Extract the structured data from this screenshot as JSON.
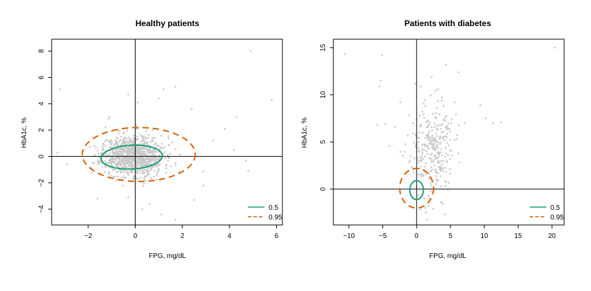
{
  "chart_data": [
    {
      "type": "scatter",
      "title": "Healthy patients",
      "xlabel": "FPG, mg/dL",
      "ylabel": "HbA1c, %",
      "xlim": [
        -3.55,
        6.25
      ],
      "ylim": [
        -5.2,
        8.9
      ],
      "xticks": [
        -2,
        0,
        2,
        4,
        6
      ],
      "yticks": [
        -4,
        -2,
        0,
        2,
        4,
        6,
        8
      ],
      "xtick_labels": [
        "−2",
        "0",
        "2",
        "4",
        "6"
      ],
      "ytick_labels": [
        "−4",
        "−2",
        "0",
        "2",
        "4",
        "6",
        "8"
      ],
      "reference_lines": {
        "x": 0,
        "y": 0
      },
      "point_color": "#c8c8c8",
      "cloud": {
        "n": 1100,
        "x_mean": -0.1,
        "x_sd": 0.65,
        "y_mean": 0.05,
        "y_sd": 0.75,
        "seed": 11
      },
      "outliers": [
        [
          4.9,
          8.0
        ],
        [
          5.8,
          4.3
        ],
        [
          -3.2,
          5.1
        ],
        [
          1.2,
          5.1
        ],
        [
          1.7,
          5.3
        ],
        [
          1.0,
          4.4
        ],
        [
          -0.3,
          4.7
        ],
        [
          4.3,
          3.0
        ],
        [
          3.8,
          2.1
        ],
        [
          4.2,
          0.5
        ],
        [
          4.7,
          -0.3
        ],
        [
          4.8,
          -1.1
        ],
        [
          1.1,
          -4.4
        ],
        [
          1.7,
          -4.8
        ],
        [
          -0.3,
          -3.1
        ],
        [
          0.6,
          -3.6
        ],
        [
          -3.3,
          0.3
        ],
        [
          -2.9,
          -0.6
        ],
        [
          3.3,
          1.2
        ],
        [
          2.4,
          3.6
        ],
        [
          0.1,
          4.1
        ],
        [
          -1.1,
          3.0
        ],
        [
          2.9,
          -2.2
        ],
        [
          2.5,
          -3.3
        ],
        [
          -1.6,
          -3.2
        ],
        [
          0.3,
          -4.0
        ]
      ],
      "contours": [
        {
          "level": "0.5",
          "cx": -0.15,
          "cy": -0.05,
          "rx": 1.3,
          "ry": 0.9,
          "rotation_deg": 3,
          "color": "#1b9e77",
          "dash": "solid"
        },
        {
          "level": "0.95",
          "cx": 0.15,
          "cy": 0.15,
          "rx": 2.4,
          "ry": 2.05,
          "rotation_deg": 0,
          "color": "#d95f02",
          "dash": "dashed"
        }
      ],
      "legend": {
        "position": "bottom-right",
        "entries": [
          {
            "label": "0.5",
            "color": "#1b9e77",
            "dash": "solid"
          },
          {
            "label": "0.95",
            "color": "#d95f02",
            "dash": "dashed"
          }
        ]
      }
    },
    {
      "type": "scatter",
      "title": "Patients with diabetes",
      "xlabel": "FPG, mg/dL",
      "ylabel": "HbA1c, %",
      "xlim": [
        -12.3,
        21.8
      ],
      "ylim": [
        -3.8,
        15.9
      ],
      "xticks": [
        -10,
        -5,
        0,
        5,
        10,
        15,
        20
      ],
      "yticks": [
        0,
        5,
        10,
        15
      ],
      "xtick_labels": [
        "−10",
        "−5",
        "0",
        "5",
        "10",
        "15",
        "20"
      ],
      "ytick_labels": [
        "0",
        "5",
        "10",
        "15"
      ],
      "reference_lines": {
        "x": 0,
        "y": 0
      },
      "point_color": "#c8c8c8",
      "cloud": {
        "n": 300,
        "x_mean": 2.3,
        "x_sd": 1.6,
        "y_mean": 4.2,
        "y_sd": 2.5,
        "seed": 23
      },
      "outliers": [
        [
          -10.6,
          14.3
        ],
        [
          20.4,
          15.0
        ],
        [
          -5.1,
          14.2
        ],
        [
          4.3,
          13.2
        ],
        [
          6.2,
          12.4
        ],
        [
          -5.5,
          10.9
        ],
        [
          -5.3,
          11.5
        ],
        [
          9.4,
          8.9
        ],
        [
          10.2,
          7.5
        ],
        [
          11.3,
          7.0
        ],
        [
          12.5,
          7.1
        ],
        [
          -4.6,
          6.9
        ],
        [
          -5.8,
          6.8
        ],
        [
          -4.0,
          4.6
        ],
        [
          -3.2,
          6.6
        ],
        [
          -2.4,
          9.2
        ],
        [
          -0.2,
          11.2
        ],
        [
          7.1,
          7.0
        ],
        [
          5.6,
          9.2
        ],
        [
          -1.3,
          5.7
        ],
        [
          0.6,
          10.9
        ],
        [
          3.9,
          -1.6
        ],
        [
          3.0,
          1.8
        ],
        [
          -0.5,
          2.1
        ],
        [
          1.7,
          -0.7
        ]
      ],
      "contours": [
        {
          "level": "0.5",
          "cx": 0.0,
          "cy": -0.1,
          "rx": 1.0,
          "ry": 1.0,
          "rotation_deg": 0,
          "color": "#1b9e77",
          "dash": "solid"
        },
        {
          "level": "0.95",
          "cx": 0.0,
          "cy": 0.1,
          "rx": 2.5,
          "ry": 2.1,
          "rotation_deg": 0,
          "color": "#d95f02",
          "dash": "dashed"
        }
      ],
      "legend": {
        "position": "bottom-right",
        "entries": [
          {
            "label": "0.5",
            "color": "#1b9e77",
            "dash": "solid"
          },
          {
            "label": "0.95",
            "color": "#d95f02",
            "dash": "dashed"
          }
        ]
      }
    }
  ]
}
